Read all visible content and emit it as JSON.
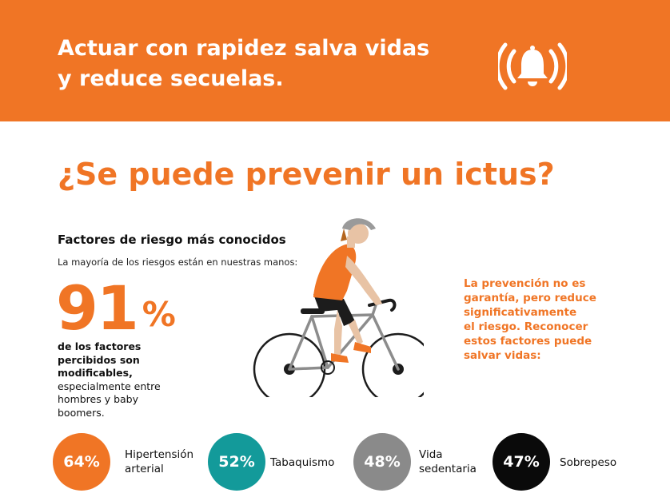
{
  "banner": {
    "title_line1": "Actuar con rapidez salva vidas",
    "title_line2": "y reduce secuelas.",
    "icon": "alarm-bell-icon",
    "color": "#f07525"
  },
  "question": "¿Se puede prevenir un ictus?",
  "risk": {
    "heading": "Factores de riesgo más conocidos",
    "subheading": "La mayoría de los riesgos están en nuestras manos:",
    "big_number": "91",
    "big_percent": "%",
    "bold_line1": "de los factores",
    "bold_line2": "percibidos son",
    "bold_line3": "modificables,",
    "line4": "especialmente entre",
    "line5": "hombres y baby",
    "line6": "boomers."
  },
  "illustration": "cyclist-illustration",
  "prevention": {
    "line1": "La prevención no es",
    "line2": "garantía, pero reduce",
    "line3": "significativamente",
    "line4": "el riesgo. Reconocer",
    "line5": "estos factores puede",
    "line6": "salvar vidas:"
  },
  "stats": [
    {
      "value": "64%",
      "label_line1": "Hipertensión",
      "label_line2": "arterial",
      "color": "#f07525"
    },
    {
      "value": "52%",
      "label_line1": "Tabaquismo",
      "color": "#139a9a"
    },
    {
      "value": "48%",
      "label_line1": "Vida",
      "label_line2": "sedentaria",
      "color": "#8a8a8a"
    },
    {
      "value": "47%",
      "label_line1": "Sobrepeso",
      "color": "#0a0a0a"
    }
  ]
}
